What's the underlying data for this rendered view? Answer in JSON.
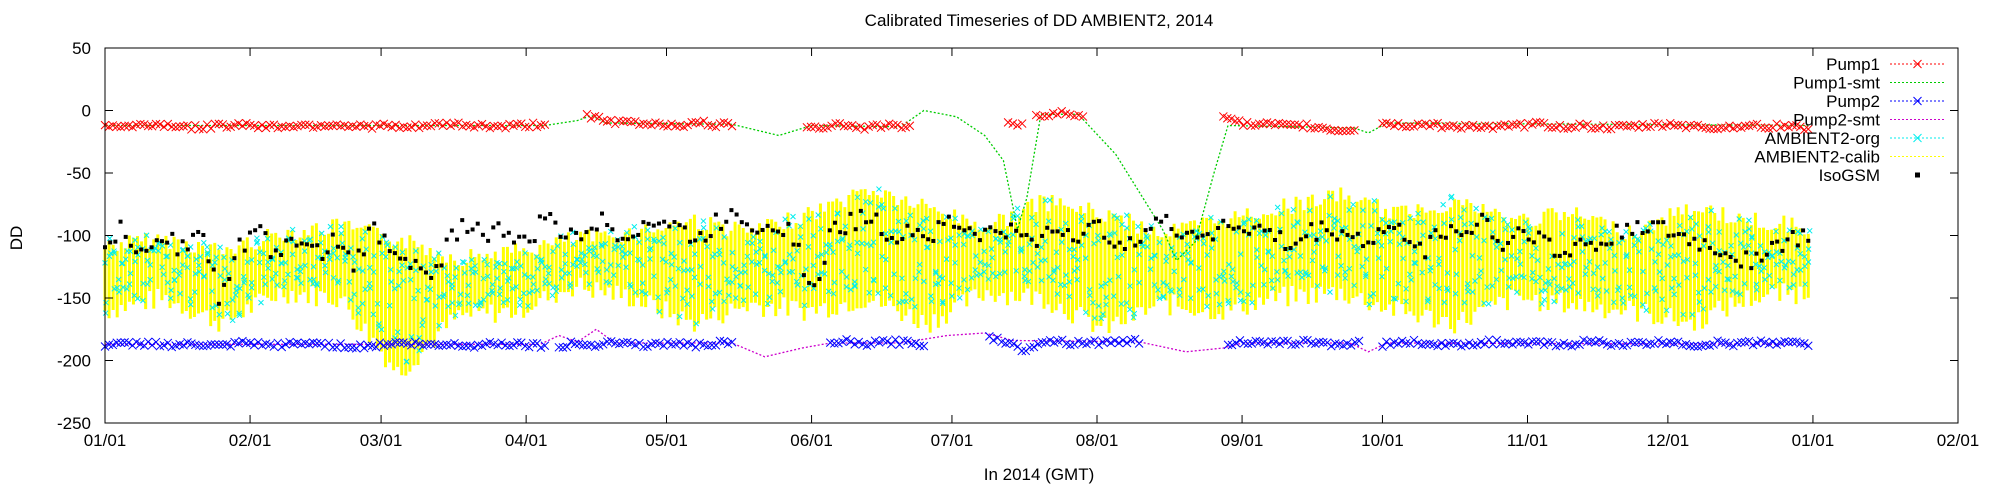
{
  "chart_data": {
    "type": "scatter",
    "title": "Calibrated Timeseries of DD AMBIENT2, 2014",
    "xlabel": "In 2014 (GMT)",
    "ylabel": "DD",
    "xlim": [
      "2014-01-01",
      "2015-02-01"
    ],
    "ylim": [
      -250,
      50
    ],
    "yticks": [
      50,
      0,
      -50,
      -100,
      -150,
      -200,
      -250
    ],
    "xticks": [
      "01/01",
      "02/01",
      "03/01",
      "04/01",
      "05/01",
      "06/01",
      "07/01",
      "08/01",
      "09/01",
      "10/01",
      "11/01",
      "12/01",
      "01/01",
      "02/01"
    ],
    "xtick_dates": [
      "2014-01-01",
      "2014-02-01",
      "2014-03-01",
      "2014-04-01",
      "2014-05-01",
      "2014-06-01",
      "2014-07-01",
      "2014-08-01",
      "2014-09-01",
      "2014-10-01",
      "2014-11-01",
      "2014-12-01",
      "2015-01-01",
      "2015-02-01"
    ],
    "grid": false,
    "legend_position": "top-right",
    "series": [
      {
        "name": "Pump1",
        "color": "#ff0000",
        "marker": "x",
        "segments": [
          {
            "from": "2014-01-01",
            "to": "2014-04-05",
            "values": [
              -12,
              -13,
              -11,
              -12,
              -14,
              -12,
              -11,
              -13,
              -12,
              -12,
              -11,
              -13,
              -12,
              -14,
              -12,
              -11,
              -12,
              -13,
              -12,
              -11
            ]
          },
          {
            "from": "2014-04-14",
            "to": "2014-05-15",
            "values": [
              -3,
              -8,
              -10,
              -9,
              -11,
              -10,
              -12,
              -11,
              -10,
              -12,
              -11
            ]
          },
          {
            "from": "2014-05-31",
            "to": "2014-06-22",
            "values": [
              -12,
              -13,
              -11,
              -12,
              -14,
              -12,
              -13,
              -12
            ]
          },
          {
            "from": "2014-07-13",
            "to": "2014-07-16",
            "values": [
              -10,
              -13,
              -12
            ]
          },
          {
            "from": "2014-07-19",
            "to": "2014-07-29",
            "values": [
              -2,
              -4,
              -3,
              -2,
              -4,
              -3
            ]
          },
          {
            "from": "2014-08-28",
            "to": "2014-09-25",
            "values": [
              -3,
              -10,
              -12,
              -11,
              -13,
              -12,
              -14,
              -16,
              -15
            ]
          },
          {
            "from": "2014-10-01",
            "to": "2014-12-31",
            "values": [
              -10,
              -12,
              -11,
              -13,
              -12,
              -14,
              -12,
              -11,
              -13,
              -12,
              -14,
              -13,
              -12,
              -11,
              -13,
              -14,
              -12,
              -13,
              -12,
              -14
            ]
          }
        ]
      },
      {
        "name": "Pump1-smt",
        "color": "#00cc00",
        "line": "dotted",
        "points": [
          [
            "2014-01-01",
            -12
          ],
          [
            "2014-04-05",
            -12
          ],
          [
            "2014-04-12",
            -8
          ],
          [
            "2014-04-15",
            -4
          ],
          [
            "2014-04-18",
            -10
          ],
          [
            "2014-05-15",
            -11
          ],
          [
            "2014-05-25",
            -20
          ],
          [
            "2014-06-01",
            -12
          ],
          [
            "2014-06-20",
            -13
          ],
          [
            "2014-06-25",
            0
          ],
          [
            "2014-07-02",
            -5
          ],
          [
            "2014-07-08",
            -20
          ],
          [
            "2014-07-12",
            -40
          ],
          [
            "2014-07-15",
            -95
          ],
          [
            "2014-07-17",
            -70
          ],
          [
            "2014-07-20",
            -3
          ],
          [
            "2014-07-28",
            -3
          ],
          [
            "2014-08-05",
            -35
          ],
          [
            "2014-08-15",
            -95
          ],
          [
            "2014-08-18",
            -120
          ],
          [
            "2014-08-22",
            -105
          ],
          [
            "2014-08-26",
            -50
          ],
          [
            "2014-08-29",
            -12
          ],
          [
            "2014-09-25",
            -14
          ],
          [
            "2014-09-28",
            -18
          ],
          [
            "2014-10-02",
            -10
          ],
          [
            "2014-12-31",
            -12
          ]
        ]
      },
      {
        "name": "Pump2",
        "color": "#0000ff",
        "marker": "x",
        "segments": [
          {
            "from": "2014-01-01",
            "to": "2014-04-05",
            "values": [
              -188,
              -187,
              -186,
              -188,
              -187,
              -189,
              -186,
              -188,
              -187,
              -186,
              -188,
              -189,
              -187,
              -186,
              -188,
              -187,
              -188,
              -186,
              -187,
              -188
            ]
          },
          {
            "from": "2014-04-08",
            "to": "2014-05-15",
            "values": [
              -190,
              -186,
              -188,
              -185,
              -186,
              -187,
              -188,
              -186,
              -187,
              -188,
              -186,
              -187
            ]
          },
          {
            "from": "2014-06-05",
            "to": "2014-06-25",
            "values": [
              -186,
              -185,
              -187,
              -186,
              -185,
              -186,
              -187
            ]
          },
          {
            "from": "2014-07-09",
            "to": "2014-08-10",
            "values": [
              -181,
              -185,
              -192,
              -185,
              -184,
              -186,
              -185,
              -186,
              -184,
              -185
            ]
          },
          {
            "from": "2014-08-29",
            "to": "2014-09-26",
            "values": [
              -186,
              -185,
              -187,
              -186,
              -185,
              -186,
              -187,
              -186
            ]
          },
          {
            "from": "2014-10-01",
            "to": "2014-12-31",
            "values": [
              -187,
              -185,
              -186,
              -188,
              -186,
              -185,
              -187,
              -186,
              -188,
              -185,
              -186,
              -187,
              -186,
              -185,
              -188,
              -186,
              -187,
              -185,
              -186,
              -187
            ]
          }
        ]
      },
      {
        "name": "Pump2-smt",
        "color": "#cc00cc",
        "line": "dotted",
        "points": [
          [
            "2014-01-01",
            -187
          ],
          [
            "2014-04-04",
            -187
          ],
          [
            "2014-04-08",
            -180
          ],
          [
            "2014-04-12",
            -185
          ],
          [
            "2014-04-16",
            -175
          ],
          [
            "2014-04-20",
            -186
          ],
          [
            "2014-05-15",
            -186
          ],
          [
            "2014-05-22",
            -197
          ],
          [
            "2014-05-30",
            -190
          ],
          [
            "2014-06-05",
            -186
          ],
          [
            "2014-06-20",
            -186
          ],
          [
            "2014-06-30",
            -180
          ],
          [
            "2014-07-08",
            -178
          ],
          [
            "2014-07-14",
            -184
          ],
          [
            "2014-08-10",
            -185
          ],
          [
            "2014-08-20",
            -193
          ],
          [
            "2014-08-28",
            -190
          ],
          [
            "2014-09-01",
            -186
          ],
          [
            "2014-09-24",
            -186
          ],
          [
            "2014-09-28",
            -193
          ],
          [
            "2014-10-02",
            -186
          ],
          [
            "2014-12-31",
            -187
          ]
        ]
      },
      {
        "name": "AMBIENT2-org",
        "color": "#00eeee",
        "marker": "x",
        "range": [
          "2014-01-01",
          "2014-12-31"
        ],
        "band_low": [
          -160,
          -150,
          -170,
          -145,
          -150,
          -210,
          -165,
          -160,
          -140,
          -150,
          -170,
          -155,
          -160,
          -150,
          -170,
          -145,
          -150,
          -175,
          -155,
          -160,
          -150,
          -145,
          -160,
          -170,
          -150,
          -155,
          -160,
          -170,
          -150,
          -145
        ],
        "band_high": [
          -105,
          -100,
          -110,
          -95,
          -90,
          -100,
          -115,
          -110,
          -100,
          -95,
          -85,
          -95,
          -80,
          -60,
          -75,
          -90,
          -70,
          -80,
          -95,
          -85,
          -75,
          -65,
          -80,
          -70,
          -85,
          -80,
          -95,
          -75,
          -85,
          -90
        ]
      },
      {
        "name": "AMBIENT2-calib",
        "color": "#ffff00",
        "marker": "dot",
        "range": [
          "2014-01-01",
          "2014-12-31"
        ],
        "band_low": [
          -165,
          -155,
          -175,
          -150,
          -155,
          -215,
          -170,
          -165,
          -145,
          -155,
          -175,
          -160,
          -165,
          -155,
          -175,
          -150,
          -155,
          -180,
          -160,
          -165,
          -155,
          -150,
          -165,
          -175,
          -155,
          -160,
          -165,
          -175,
          -155,
          -150
        ],
        "band_high": [
          -105,
          -100,
          -110,
          -95,
          -90,
          -100,
          -115,
          -110,
          -100,
          -95,
          -85,
          -95,
          -80,
          -60,
          -75,
          -90,
          -70,
          -80,
          -95,
          -85,
          -75,
          -65,
          -80,
          -70,
          -85,
          -80,
          -95,
          -75,
          -85,
          -90
        ]
      },
      {
        "name": "IsoGSM",
        "color": "#000000",
        "marker": "square",
        "range": [
          "2014-01-01",
          "2014-12-31"
        ],
        "values": [
          -105,
          -95,
          -120,
          -100,
          -110,
          -95,
          -150,
          -110,
          -95,
          -120,
          -100,
          -115,
          -105,
          -125,
          -95,
          -110,
          -120,
          -140,
          -100,
          -90,
          -100,
          -95,
          -110,
          -85,
          -100,
          -95,
          -90,
          -100,
          -92,
          -88,
          -95,
          -105,
          -90,
          -80,
          -95,
          -88,
          -100,
          -150,
          -95,
          -90,
          -85,
          -100,
          -95,
          -100,
          -90,
          -95,
          -100,
          -95,
          -105,
          -100,
          -95,
          -100,
          -95,
          -105,
          -100,
          -90,
          -95,
          -100,
          -95,
          -92,
          -95,
          -100,
          -110,
          -98,
          -95,
          -100,
          -105,
          -95,
          -100,
          -110,
          -95,
          -100,
          -85,
          -110,
          -95,
          -100,
          -120,
          -105,
          -110,
          -100,
          -90,
          -95,
          -100,
          -105,
          -110,
          -115,
          -120,
          -110,
          -105,
          -100
        ]
      }
    ]
  }
}
